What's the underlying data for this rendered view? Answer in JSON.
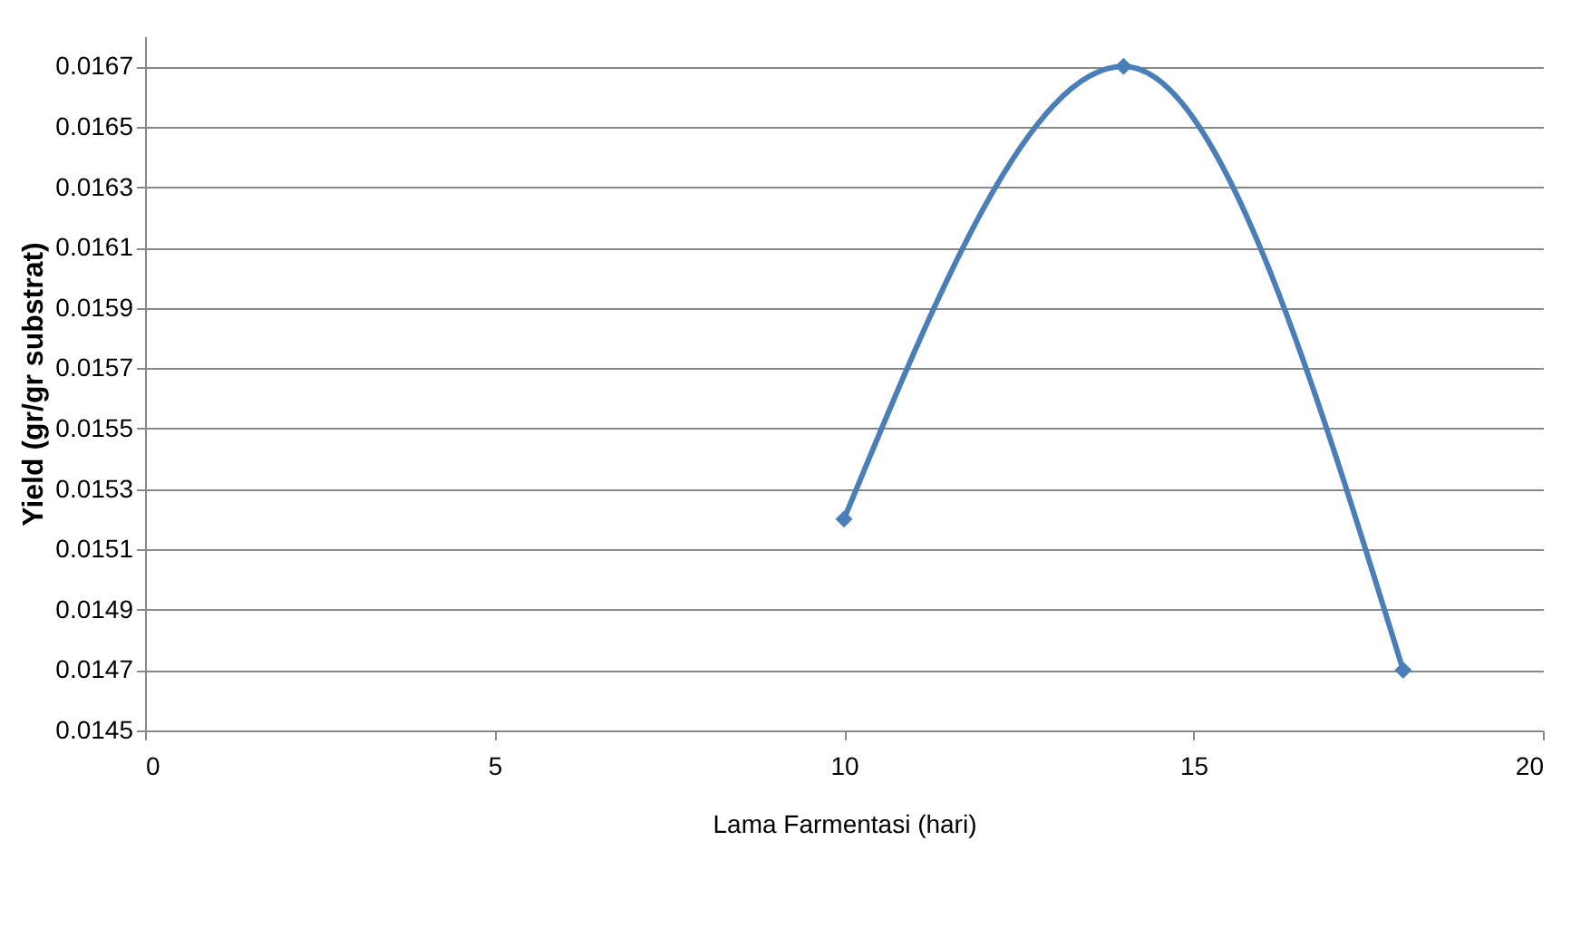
{
  "chart_data": {
    "type": "line",
    "xlabel": "Lama Farmentasi (hari)",
    "ylabel": "Yield (gr/gr substrat)",
    "x": [
      10,
      14,
      18
    ],
    "series": [
      {
        "color": "#4a7ebb",
        "values": [
          0.0152,
          0.0167,
          0.0147
        ]
      }
    ],
    "xlim": [
      0,
      20
    ],
    "xticks": [
      0,
      5,
      10,
      15,
      20
    ],
    "ylim": [
      0.0145,
      0.0168
    ],
    "yticks": [
      0.0145,
      0.0147,
      0.0149,
      0.0151,
      0.0153,
      0.0155,
      0.0157,
      0.0159,
      0.0161,
      0.0163,
      0.0165,
      0.0167
    ],
    "grid": "y",
    "marker": "diamond",
    "line_style": "solid",
    "legend": false
  }
}
